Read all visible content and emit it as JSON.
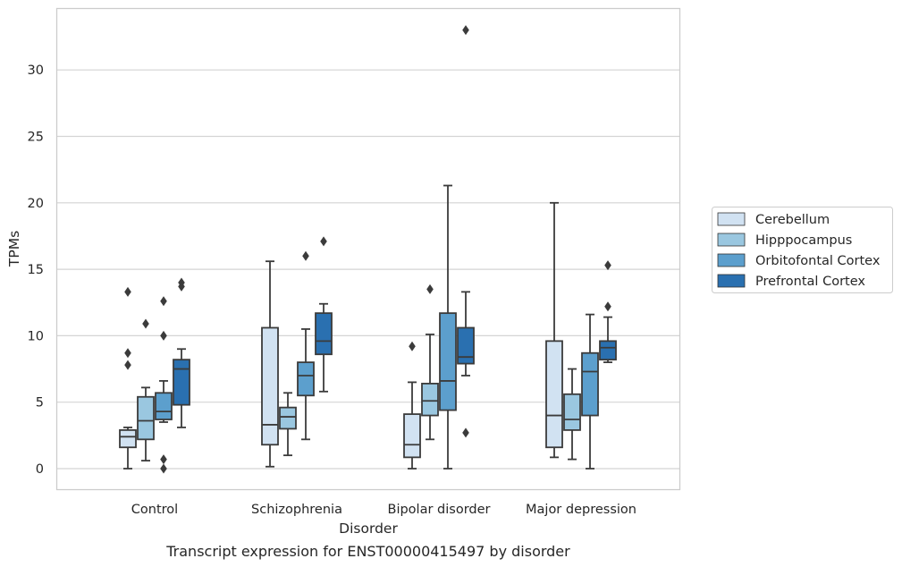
{
  "chart_data": {
    "type": "box",
    "caption": "Transcript expression for ENST00000415497 by disorder",
    "xlabel": "Disorder",
    "ylabel": "TPMs",
    "ylim": [
      -1.5,
      34.2
    ],
    "yticks": [
      0,
      5,
      10,
      15,
      20,
      25,
      30
    ],
    "grid": true,
    "legend_position": "right-outside",
    "categories": [
      "Control",
      "Schizophrenia",
      "Bipolar disorder",
      "Major depression"
    ],
    "series": [
      {
        "name": "Cerebellum",
        "color": "#d1e2f2",
        "boxes": [
          {
            "whislo": 0.0,
            "q1": 1.6,
            "med": 2.4,
            "q3": 2.9,
            "whishi": 3.1,
            "fliers": [
              13.3,
              8.7,
              7.8
            ]
          },
          {
            "whislo": 0.15,
            "q1": 1.8,
            "med": 3.3,
            "q3": 10.6,
            "whishi": 15.6,
            "fliers": []
          },
          {
            "whislo": 0.0,
            "q1": 0.85,
            "med": 1.8,
            "q3": 4.1,
            "whishi": 6.5,
            "fliers": [
              9.2
            ]
          },
          {
            "whislo": 0.85,
            "q1": 1.6,
            "med": 4.0,
            "q3": 9.6,
            "whishi": 20.0,
            "fliers": []
          }
        ]
      },
      {
        "name": "Hipppocampus",
        "color": "#9ac7e0",
        "boxes": [
          {
            "whislo": 0.6,
            "q1": 2.2,
            "med": 3.6,
            "q3": 5.4,
            "whishi": 6.1,
            "fliers": [
              10.9
            ]
          },
          {
            "whislo": 1.0,
            "q1": 3.0,
            "med": 3.9,
            "q3": 4.6,
            "whishi": 5.7,
            "fliers": []
          },
          {
            "whislo": 2.2,
            "q1": 4.0,
            "med": 5.1,
            "q3": 6.4,
            "whishi": 10.1,
            "fliers": [
              13.5
            ]
          },
          {
            "whislo": 0.7,
            "q1": 2.9,
            "med": 3.7,
            "q3": 5.6,
            "whishi": 7.5,
            "fliers": []
          }
        ]
      },
      {
        "name": "Orbitofontal Cortex",
        "color": "#5c9fcd",
        "boxes": [
          {
            "whislo": 3.5,
            "q1": 3.7,
            "med": 4.3,
            "q3": 5.7,
            "whishi": 6.6,
            "fliers": [
              12.6,
              10.0,
              0.7,
              0.0
            ]
          },
          {
            "whislo": 2.2,
            "q1": 5.5,
            "med": 7.0,
            "q3": 8.0,
            "whishi": 10.5,
            "fliers": [
              16.0
            ]
          },
          {
            "whislo": 0.0,
            "q1": 4.4,
            "med": 6.6,
            "q3": 11.7,
            "whishi": 21.3,
            "fliers": []
          },
          {
            "whislo": 0.0,
            "q1": 4.0,
            "med": 7.3,
            "q3": 8.7,
            "whishi": 11.6,
            "fliers": []
          }
        ]
      },
      {
        "name": "Prefrontal Cortex",
        "color": "#2a70b0",
        "boxes": [
          {
            "whislo": 3.1,
            "q1": 4.8,
            "med": 7.5,
            "q3": 8.2,
            "whishi": 9.0,
            "fliers": [
              14.0,
              13.7
            ]
          },
          {
            "whislo": 5.8,
            "q1": 8.6,
            "med": 9.6,
            "q3": 11.7,
            "whishi": 12.4,
            "fliers": [
              17.1
            ]
          },
          {
            "whislo": 7.0,
            "q1": 7.9,
            "med": 8.4,
            "q3": 10.6,
            "whishi": 13.3,
            "fliers": [
              33.0,
              2.7
            ]
          },
          {
            "whislo": 8.0,
            "q1": 8.2,
            "med": 9.1,
            "q3": 9.6,
            "whishi": 11.4,
            "fliers": [
              15.3,
              12.2
            ]
          }
        ]
      }
    ]
  }
}
